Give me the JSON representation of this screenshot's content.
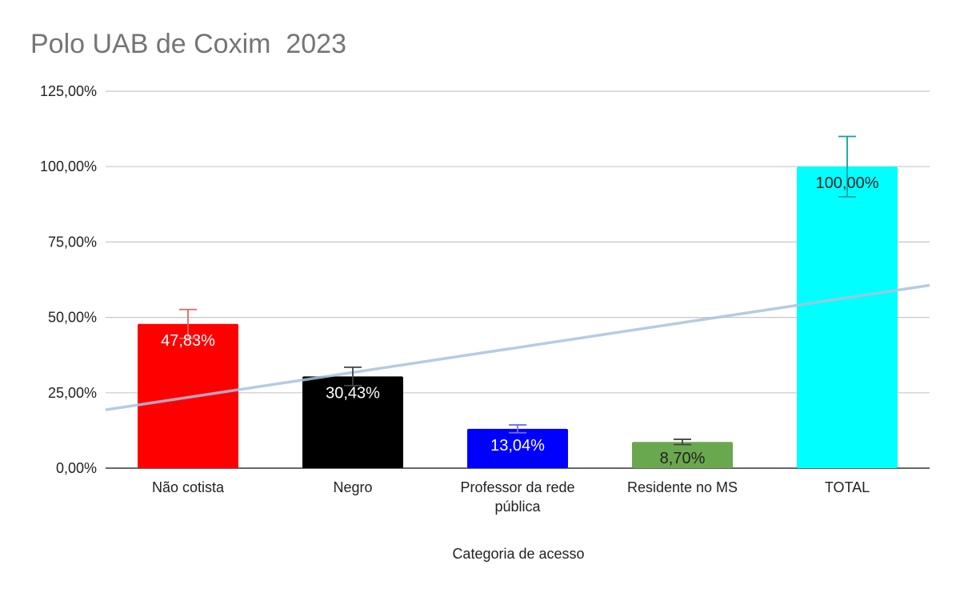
{
  "chart_data": {
    "type": "bar",
    "title": "Polo UAB de Coxim  2023",
    "xlabel": "Categoria de acesso",
    "ylabel": "",
    "ylim": [
      0,
      125
    ],
    "y_ticks": [
      "0,00%",
      "25,00%",
      "50,00%",
      "75,00%",
      "100,00%",
      "125,00%"
    ],
    "categories": [
      "Não cotista",
      "Negro",
      "Professor da rede pública",
      "Residente no MS",
      "TOTAL"
    ],
    "category_lines": [
      [
        "Não cotista"
      ],
      [
        "Negro"
      ],
      [
        "Professor da rede",
        "pública"
      ],
      [
        "Residente no MS"
      ],
      [
        "TOTAL"
      ]
    ],
    "values": [
      47.83,
      30.43,
      13.04,
      8.7,
      100.0
    ],
    "data_labels": [
      "47,83%",
      "30,43%",
      "13,04%",
      "8,70%",
      "100,00%"
    ],
    "bar_colors": [
      "#ff0000",
      "#000000",
      "#0000ff",
      "#6aa84f",
      "#00ffff"
    ],
    "label_colors": [
      "#ffffff",
      "#ffffff",
      "#ffffff",
      "#222222",
      "#222222"
    ],
    "error_bar_colors": [
      "#e06666",
      "#444444",
      "#6d6dff",
      "#444444",
      "#0aa39a"
    ],
    "error_pct": 10,
    "trendline": {
      "type": "linear",
      "color": "#a9c4de"
    },
    "grid": true,
    "legend": "none"
  }
}
